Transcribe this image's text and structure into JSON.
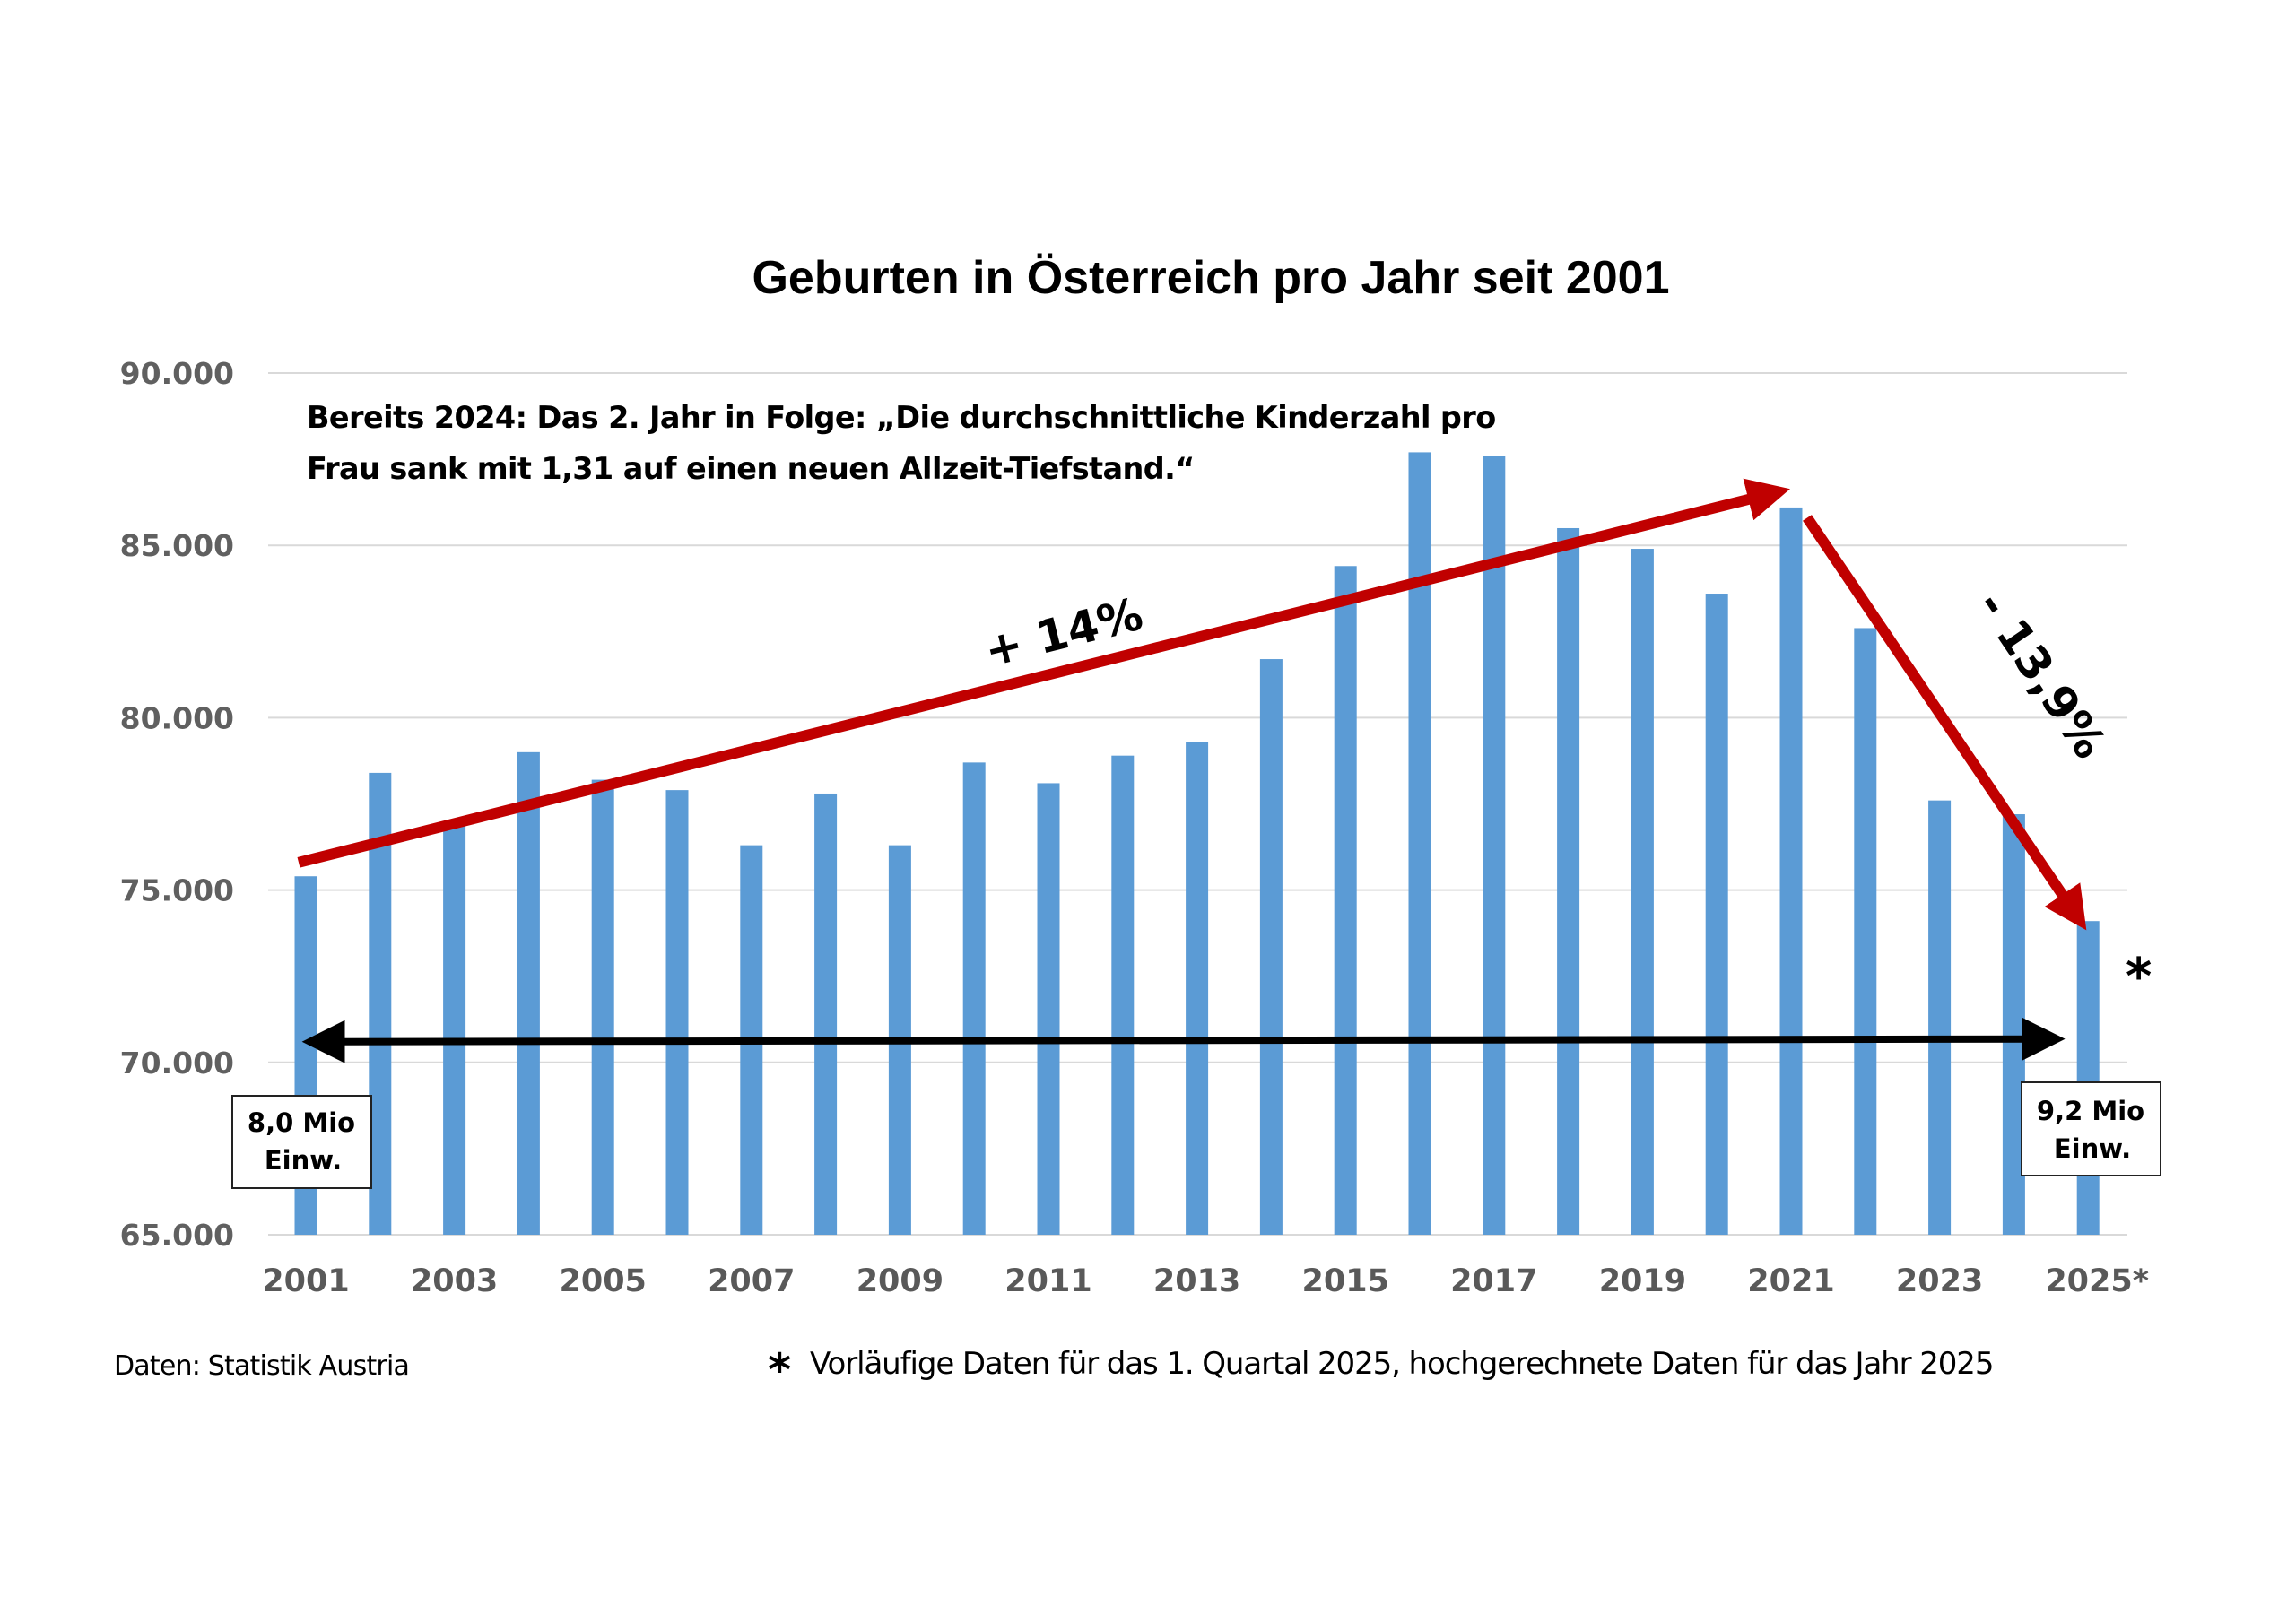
{
  "chart_data": {
    "type": "bar",
    "title": "Geburten in Österreich pro Jahr seit 2001",
    "xlabel": "",
    "ylabel": "",
    "ylim": [
      65000,
      90000
    ],
    "yticks": [
      65000,
      70000,
      75000,
      80000,
      85000,
      90000
    ],
    "ytick_labels": [
      "65.000",
      "70.000",
      "75.000",
      "80.000",
      "85.000",
      "90.000"
    ],
    "grid": true,
    "legend": "none",
    "bar_color": "#5b9bd5",
    "categories": [
      "2001",
      "2002",
      "2003",
      "2004",
      "2005",
      "2006",
      "2007",
      "2008",
      "2009",
      "2010",
      "2011",
      "2012",
      "2013",
      "2014",
      "2015",
      "2016",
      "2017",
      "2018",
      "2019",
      "2020",
      "2021",
      "2022",
      "2023",
      "2024",
      "2025*"
    ],
    "xtick_labels": [
      "2001",
      "2003",
      "2005",
      "2007",
      "2009",
      "2011",
      "2013",
      "2015",
      "2017",
      "2019",
      "2021",
      "2023",
      "2025*"
    ],
    "series": [
      {
        "name": "Geburten",
        "values": [
          75400,
          78400,
          76900,
          79000,
          78200,
          77900,
          76300,
          77800,
          76300,
          78700,
          78100,
          78900,
          79300,
          81700,
          84400,
          87700,
          87600,
          85500,
          84900,
          83600,
          86100,
          82600,
          77600,
          77200,
          74100
        ]
      }
    ],
    "annotations": {
      "quote_lines": [
        "Bereits 2024: Das 2. Jahr in Folge: „Die durchschnittliche Kinderzahl pro",
        "Frau sank mit 1,31 auf einen neuen Allzeit-Tiefstand.“"
      ],
      "rise_label": "+ 14%",
      "rise_from": {
        "year": "2001",
        "value": 75800
      },
      "rise_to": {
        "year": "2021",
        "value": 86500
      },
      "fall_label": "- 13,9%",
      "fall_from": {
        "year": "2021",
        "value": 85800
      },
      "fall_to": {
        "year": "2025*",
        "value": 74300
      },
      "accent_color": "#c00000",
      "population_start": [
        "8,0 Mio",
        "Einw."
      ],
      "population_end": [
        "9,2 Mio",
        "Einw."
      ],
      "population_arrow_value": 70600,
      "provisional_marker": "*"
    },
    "source": "Daten: Statistik Austria",
    "footnote_marker": "*",
    "footnote": "Vorläufige Daten für das 1. Quartal 2025, hochgerechnete Daten für das Jahr 2025"
  }
}
